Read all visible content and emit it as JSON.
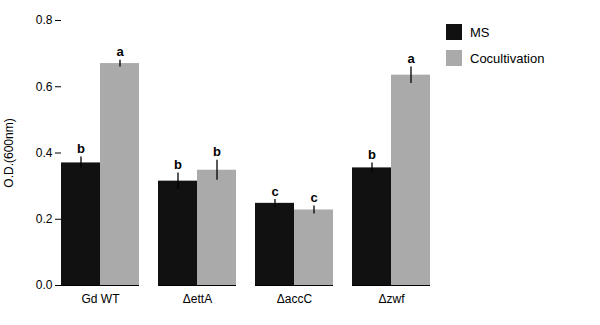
{
  "chart_data": {
    "type": "bar",
    "categories": [
      "Gd WT",
      "ΔettA",
      "ΔaccC",
      "Δzwf"
    ],
    "series": [
      {
        "name": "MS",
        "color": "#111111",
        "values": [
          0.37,
          0.315,
          0.248,
          0.355
        ],
        "errors": [
          0.018,
          0.025,
          0.012,
          0.015
        ],
        "annotations": [
          "b",
          "b",
          "c",
          "b"
        ]
      },
      {
        "name": "Cocultivation",
        "color": "#aaaaaa",
        "values": [
          0.67,
          0.348,
          0.228,
          0.635
        ],
        "errors": [
          0.01,
          0.03,
          0.012,
          0.025
        ],
        "annotations": [
          "a",
          "b",
          "c",
          "a"
        ]
      }
    ],
    "ylabel": "O.D.(600nm)",
    "ylim": [
      0.0,
      0.8
    ],
    "yticks": [
      {
        "value": 0.0,
        "label": "0.0"
      },
      0.2,
      0.4,
      0.6,
      0.8
    ],
    "grid": false,
    "legend": "right"
  }
}
